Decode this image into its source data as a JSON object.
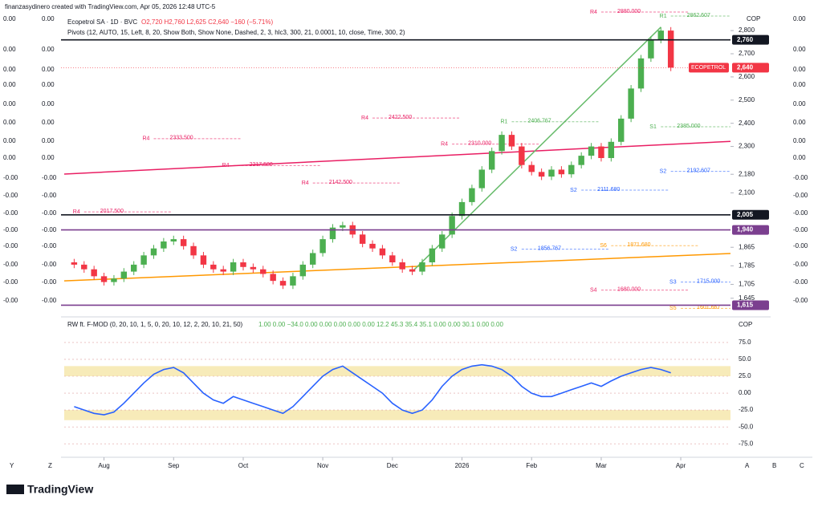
{
  "header": {
    "attribution": "finanzasydinero created with TradingView.com, Apr 05, 2026 12:48 UTC-5",
    "symbol": "Ecopetrol SA · 1D · BVC",
    "ohlc": "O2,720 H2,760 L2,625 C2,640 −160 (−5.71%)",
    "pivots": "Pivots (12, AUTO, 15, Left, 8, 20, Show Both, Show None, Dashed, 2, 3, hlc3, 300, 21, 0.0001, 10, close, Time, 300, 2)"
  },
  "side_labels": [
    "0.00",
    "0.00",
    "0.00",
    "0.00",
    "0.00",
    "0.00",
    "0.00",
    "0.00",
    "-0.00",
    "-0.00",
    "-0.00",
    "-0.00",
    "-0.00",
    "-0.00",
    "-0.00",
    "-0.00"
  ],
  "footer": {
    "brand": "TradingView",
    "left_buttons": [
      "Y",
      "Z"
    ],
    "right_buttons": [
      "A",
      "B",
      "C"
    ]
  },
  "chart_data": [
    {
      "type": "candlestick",
      "currency": "COP",
      "categories": [
        null,
        null,
        null,
        null,
        null,
        null,
        null,
        null,
        null,
        null,
        null,
        null,
        null,
        null,
        null,
        null,
        null,
        null,
        null,
        null,
        null,
        null,
        null,
        null,
        null,
        null,
        null,
        null,
        null,
        null,
        null,
        null,
        null,
        null,
        null,
        null,
        null,
        null,
        null,
        null,
        null,
        null,
        null,
        null,
        null,
        null,
        null,
        null,
        null,
        null,
        null,
        null,
        null,
        null,
        null,
        null,
        null,
        null,
        null,
        null,
        null
      ],
      "open": [
        1800,
        1790,
        1770,
        1740,
        1715,
        1730,
        1760,
        1790,
        1830,
        1860,
        1890,
        1900,
        1870,
        1830,
        1790,
        1770,
        1760,
        1800,
        1780,
        1770,
        1750,
        1720,
        1700,
        1740,
        1790,
        1840,
        1900,
        1950,
        1960,
        1920,
        1880,
        1860,
        1830,
        1800,
        1770,
        1760,
        1800,
        1860,
        1920,
        2000,
        2060,
        2120,
        2200,
        2280,
        2350,
        2300,
        2220,
        2190,
        2170,
        2200,
        2180,
        2220,
        2260,
        2300,
        2250,
        2320,
        2420,
        2550,
        2680,
        2760,
        2800
      ],
      "high": [
        1815,
        1805,
        1785,
        1755,
        1745,
        1775,
        1805,
        1845,
        1875,
        1905,
        1915,
        1915,
        1885,
        1845,
        1805,
        1785,
        1815,
        1815,
        1795,
        1785,
        1765,
        1735,
        1755,
        1805,
        1855,
        1915,
        1965,
        1975,
        1975,
        1935,
        1895,
        1875,
        1845,
        1815,
        1785,
        1815,
        1875,
        1935,
        2015,
        2075,
        2135,
        2215,
        2295,
        2365,
        2365,
        2315,
        2235,
        2205,
        2215,
        2215,
        2235,
        2275,
        2315,
        2315,
        2335,
        2435,
        2565,
        2695,
        2775,
        2815,
        2815
      ],
      "low": [
        1775,
        1755,
        1725,
        1700,
        1700,
        1715,
        1745,
        1775,
        1815,
        1845,
        1875,
        1855,
        1815,
        1775,
        1755,
        1745,
        1745,
        1765,
        1755,
        1735,
        1705,
        1685,
        1685,
        1725,
        1775,
        1825,
        1885,
        1935,
        1905,
        1865,
        1845,
        1815,
        1785,
        1755,
        1745,
        1745,
        1785,
        1845,
        1905,
        1985,
        2045,
        2105,
        2185,
        2265,
        2285,
        2205,
        2175,
        2155,
        2155,
        2165,
        2165,
        2205,
        2245,
        2235,
        2235,
        2305,
        2405,
        2535,
        2665,
        2745,
        2625
      ],
      "close": [
        1790,
        1770,
        1740,
        1715,
        1730,
        1760,
        1790,
        1830,
        1860,
        1890,
        1900,
        1870,
        1830,
        1790,
        1770,
        1760,
        1800,
        1780,
        1770,
        1750,
        1720,
        1700,
        1740,
        1790,
        1840,
        1900,
        1950,
        1960,
        1920,
        1880,
        1860,
        1830,
        1800,
        1770,
        1760,
        1800,
        1860,
        1920,
        2000,
        2060,
        2120,
        2200,
        2280,
        2350,
        2300,
        2220,
        2190,
        2170,
        2200,
        2180,
        2220,
        2260,
        2300,
        2250,
        2320,
        2420,
        2550,
        2680,
        2760,
        2800,
        2640
      ],
      "up_color": "#4caf50",
      "down_color": "#f23645",
      "xlim": [
        -1,
        66
      ],
      "xticks": [
        {
          "value": 3,
          "label": "Aug"
        },
        {
          "value": 10,
          "label": "Sep"
        },
        {
          "value": 17,
          "label": "Oct"
        },
        {
          "value": 25,
          "label": "Nov"
        },
        {
          "value": 32,
          "label": "Dec"
        },
        {
          "value": 39,
          "label": "2026"
        },
        {
          "value": 46,
          "label": "Feb"
        },
        {
          "value": 53,
          "label": "Mar"
        },
        {
          "value": 61,
          "label": "Apr"
        }
      ],
      "ylim": [
        1582,
        2880
      ],
      "yticks": [
        {
          "value": 2800,
          "label": "2,800"
        },
        {
          "value": 2700,
          "label": "2,700"
        },
        {
          "value": 2600,
          "label": "2,600"
        },
        {
          "value": 2500,
          "label": "2,500"
        },
        {
          "value": 2400,
          "label": "2,400"
        },
        {
          "value": 2300,
          "label": "2,300"
        },
        {
          "value": 2180,
          "label": "2,180"
        },
        {
          "value": 2100,
          "label": "2,100"
        },
        {
          "value": 1865,
          "label": "1,865"
        },
        {
          "value": 1785,
          "label": "1,785"
        },
        {
          "value": 1705,
          "label": "1,705"
        },
        {
          "value": 1645,
          "label": "1,645"
        }
      ],
      "price_lines": [
        {
          "value": 2760,
          "label": "2,760",
          "color": "#131722"
        },
        {
          "value": 2640,
          "label": "2,640",
          "name": "ECOPETROL",
          "color": "#f23645"
        },
        {
          "value": 2005,
          "label": "2,005",
          "color": "#131722"
        },
        {
          "value": 1940,
          "label": "1,940",
          "color": "#7b3f8f"
        },
        {
          "value": 1615,
          "label": "1,615",
          "color": "#7b3f8f"
        }
      ],
      "levels": [
        {
          "name": "R4",
          "value": 2880,
          "label": "2880.000",
          "from": 53,
          "color": "#e91e63"
        },
        {
          "name": "R1",
          "value": 2862.607,
          "label": "2862.607",
          "from": 60,
          "color": "#4caf50"
        },
        {
          "name": "R4",
          "value": 2422.5,
          "label": "2422.500",
          "from": 30,
          "color": "#e91e63"
        },
        {
          "name": "R1",
          "value": 2406.767,
          "label": "2406.767",
          "from": 44,
          "color": "#4caf50"
        },
        {
          "name": "S1",
          "value": 2385,
          "label": "2385.000",
          "from": 59,
          "color": "#4caf50"
        },
        {
          "name": "R4",
          "value": 2333.5,
          "label": "2333.500",
          "from": 8,
          "color": "#e91e63"
        },
        {
          "name": "R4",
          "value": 2310,
          "label": "2310.000",
          "from": 38,
          "color": "#e91e63"
        },
        {
          "name": "R4",
          "value": 2217.5,
          "label": "2217.500",
          "from": 16,
          "color": "#e91e63"
        },
        {
          "name": "S2",
          "value": 2192.607,
          "label": "2192.607",
          "from": 60,
          "color": "#2962ff"
        },
        {
          "name": "R4",
          "value": 2142.5,
          "label": "2142.500",
          "from": 24,
          "color": "#e91e63"
        },
        {
          "name": "S2",
          "value": 2111.68,
          "label": "2111.680",
          "from": 51,
          "color": "#2962ff"
        },
        {
          "name": "R4",
          "value": 2017.5,
          "label": "2017.500",
          "from": 1,
          "color": "#e91e63"
        },
        {
          "name": "S6",
          "value": 1871.68,
          "label": "1871.680",
          "from": 54,
          "color": "#ff9800"
        },
        {
          "name": "S2",
          "value": 1856.767,
          "label": "1856.767",
          "from": 45,
          "color": "#2962ff"
        },
        {
          "name": "S3",
          "value": 1715,
          "label": "1715.000",
          "from": 61,
          "color": "#2962ff"
        },
        {
          "name": "S4",
          "value": 1680,
          "label": "1680.000",
          "from": 53,
          "color": "#e91e63"
        },
        {
          "name": "S5",
          "value": 1601.667,
          "label": "1601.667",
          "from": 61,
          "color": "#ff9800"
        }
      ],
      "trendlines": [
        {
          "color": "#e91e63",
          "from": [
            -1,
            2181
          ],
          "to": [
            66,
            2322
          ]
        },
        {
          "color": "#ff9800",
          "from": [
            -1,
            1720
          ],
          "to": [
            66,
            1838
          ]
        },
        {
          "color": "#66bb6a",
          "from": [
            34,
            1760
          ],
          "to": [
            59,
            2815
          ]
        }
      ]
    },
    {
      "type": "line",
      "currency": "COP",
      "title": "RW ft. F-MOD (0, 20, 10, 1, 5, 0, 20, 10, 12, 2, 20, 10, 21, 50)",
      "readout": "1.00 0.00 −34.0 0.00 0.00 0.00 0.00 0.00 12.2 45.3 35.4 35.1 0.00 0.00 30.1 0.00 0.00",
      "series": [
        {
          "color": "#2962ff",
          "values": [
            -20,
            -25,
            -30,
            -32,
            -28,
            -15,
            0,
            15,
            28,
            35,
            38,
            30,
            15,
            0,
            -10,
            -15,
            -5,
            -10,
            -15,
            -20,
            -25,
            -30,
            -20,
            -5,
            10,
            25,
            35,
            40,
            30,
            20,
            10,
            0,
            -15,
            -25,
            -30,
            -25,
            -10,
            10,
            25,
            35,
            40,
            42,
            40,
            35,
            25,
            10,
            0,
            -5,
            -5,
            0,
            5,
            10,
            15,
            10,
            18,
            25,
            30,
            35,
            38,
            35,
            30
          ]
        }
      ],
      "bands": [
        {
          "from": 25,
          "to": 40,
          "color": "#f5e6a8"
        },
        {
          "from": -25,
          "to": -40,
          "color": "#f5e6a8"
        }
      ],
      "xlim": [
        -1,
        66
      ],
      "ylim": [
        -89,
        101
      ],
      "yticks": [
        {
          "value": 75,
          "label": "75.0"
        },
        {
          "value": 50,
          "label": "50.0"
        },
        {
          "value": 25,
          "label": "25.0"
        },
        {
          "value": 0,
          "label": "0.00"
        },
        {
          "value": -25,
          "label": "-25.0"
        },
        {
          "value": -50,
          "label": "-50.0"
        },
        {
          "value": -75,
          "label": "-75.0"
        }
      ]
    }
  ]
}
